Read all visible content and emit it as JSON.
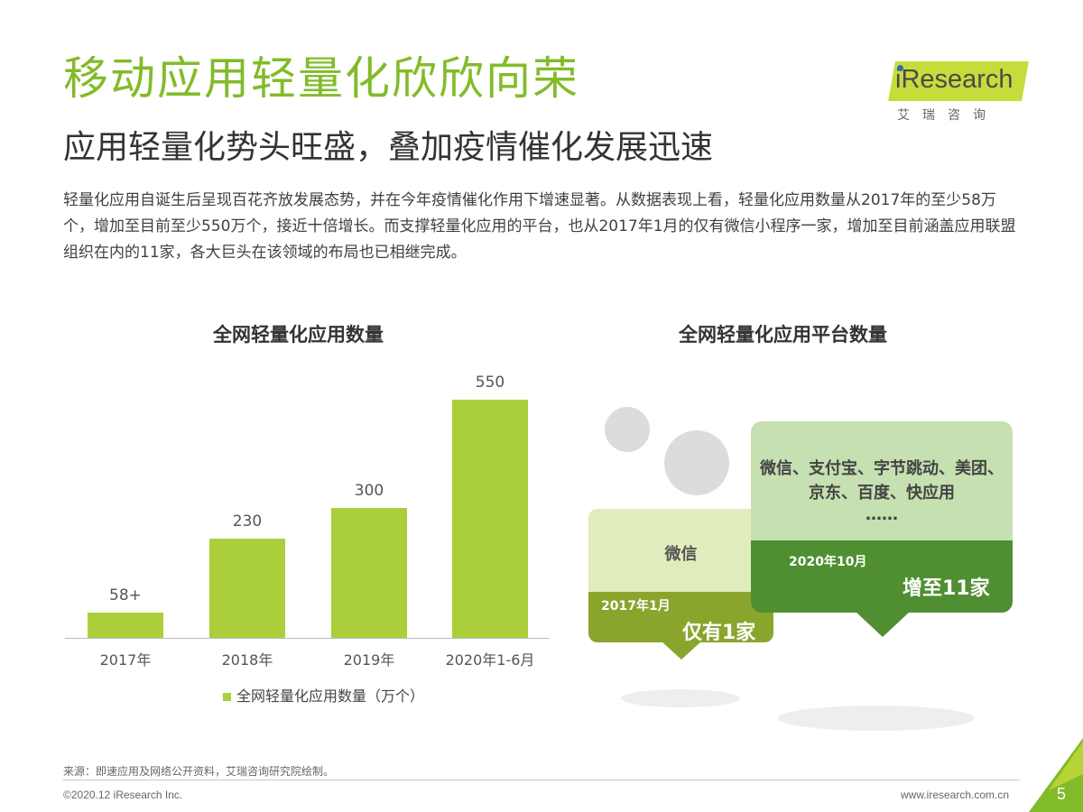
{
  "header": {
    "title": "移动应用轻量化欣欣向荣",
    "subtitle": "应用轻量化势头旺盛，叠加疫情催化发展迅速",
    "body": "轻量化应用自诞生后呈现百花齐放发展态势，并在今年疫情催化作用下增速显著。从数据表现上看，轻量化应用数量从2017年的至少58万个，增加至目前至少550万个，接近十倍增长。而支撑轻量化应用的平台，也从2017年1月的仅有微信小程序一家，增加至目前涵盖应用联盟组织在内的11家，各大巨头在该领域的布局也已相继完成。"
  },
  "logo": {
    "text": "iResearch",
    "sub": "艾瑞咨询"
  },
  "left_chart": {
    "title": "全网轻量化应用数量"
  },
  "chart_data": {
    "type": "bar",
    "title": "全网轻量化应用数量",
    "categories": [
      "2017年",
      "2018年",
      "2019年",
      "2020年1-6月"
    ],
    "series": [
      {
        "name": "全网轻量化应用数量（万个）",
        "values": [
          58,
          230,
          300,
          550
        ]
      }
    ],
    "data_labels": [
      "58+",
      "230",
      "300",
      "550"
    ],
    "ylim": [
      0,
      550
    ],
    "grid": false,
    "legend_position": "bottom",
    "bar_color": "#abcf3a"
  },
  "right_chart": {
    "title": "全网轻量化应用平台数量",
    "before": {
      "platforms": "微信",
      "date": "2017年1月",
      "count": "仅有1家"
    },
    "after": {
      "platforms": "微信、支付宝、字节跳动、美团、京东、百度、快应用",
      "more": "……",
      "date": "2020年10月",
      "count": "增至11家"
    }
  },
  "footer": {
    "source": "来源：即速应用及网络公开资料，艾瑞咨询研究院绘制。",
    "copyright": "©2020.12 iResearch Inc.",
    "website": "www.iresearch.com.cn",
    "page_number": "5"
  },
  "colors": {
    "accent": "#82bb2a",
    "bar": "#abcf3a",
    "dark_green": "#4f8f32",
    "olive_green": "#8aa52c"
  }
}
